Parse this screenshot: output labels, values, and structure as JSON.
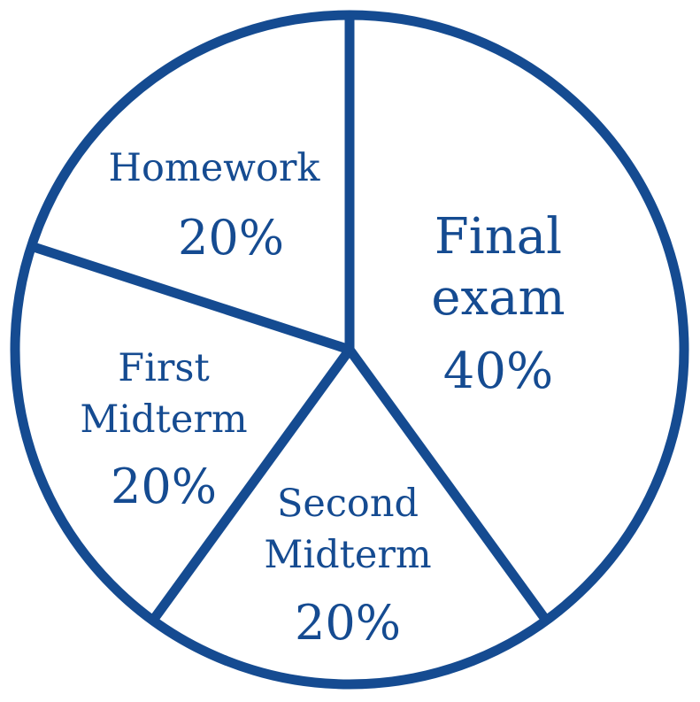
{
  "chart_data": {
    "type": "pie",
    "title": "",
    "color": "#154b91",
    "background": "#ffffff",
    "slices": [
      {
        "label_lines": [
          "Final",
          "exam"
        ],
        "pct_label": "40%",
        "value": 40
      },
      {
        "label_lines": [
          "Second",
          "Midterm"
        ],
        "pct_label": "20%",
        "value": 20
      },
      {
        "label_lines": [
          "First",
          "Midterm"
        ],
        "pct_label": "20%",
        "value": 20
      },
      {
        "label_lines": [
          "Homework"
        ],
        "pct_label": "20%",
        "value": 20
      }
    ]
  }
}
